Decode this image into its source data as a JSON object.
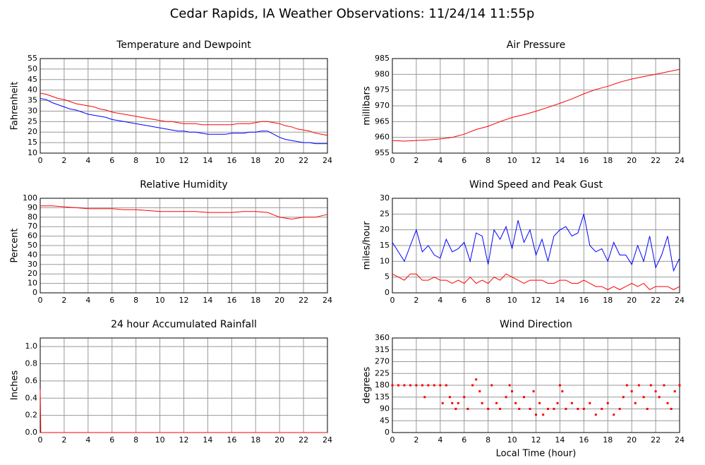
{
  "title": "Cedar Rapids, IA Weather Observations: 11/24/14 11:55p",
  "chart_data": [
    {
      "type": "line",
      "title": "Temperature and Dewpoint",
      "y_label": "Fahrenheit",
      "x": [
        0,
        0.5,
        1,
        1.5,
        2,
        2.5,
        3,
        3.5,
        4,
        4.5,
        5,
        5.5,
        6,
        6.5,
        7,
        7.5,
        8,
        8.5,
        9,
        9.5,
        10,
        10.5,
        11,
        11.5,
        12,
        12.5,
        13,
        13.5,
        14,
        14.5,
        15,
        15.5,
        16,
        16.5,
        17,
        17.5,
        18,
        18.5,
        19,
        19.5,
        20,
        20.5,
        21,
        21.5,
        22,
        22.5,
        23,
        23.5,
        24
      ],
      "series": [
        {
          "color": "#ff0000",
          "values": [
            38.5,
            38,
            37,
            36,
            35.5,
            34.5,
            33.5,
            33,
            32.5,
            32,
            31,
            30.5,
            29.5,
            29,
            28.5,
            28,
            27.5,
            27,
            26.5,
            26,
            25.5,
            25,
            25,
            24.5,
            24,
            24,
            24,
            23.5,
            23.5,
            23.5,
            23.5,
            23.5,
            23.5,
            24,
            24,
            24,
            24.5,
            25,
            25,
            24.5,
            24,
            23,
            22.5,
            21.5,
            21,
            20.5,
            19.5,
            19,
            18.5
          ]
        },
        {
          "color": "#0000ff",
          "values": [
            36,
            35.5,
            34,
            33,
            32,
            31,
            30.5,
            29.5,
            28.5,
            28,
            27.5,
            27,
            26,
            25.5,
            25,
            24.5,
            24,
            23.5,
            23,
            22.5,
            22,
            21.5,
            21,
            20.5,
            20.5,
            20,
            20,
            19.5,
            19,
            19,
            19,
            19,
            19.5,
            19.5,
            19.5,
            20,
            20,
            20.5,
            20.5,
            19,
            17.5,
            16.5,
            16,
            15.5,
            15,
            15,
            14.5,
            14.5,
            14.5
          ]
        }
      ],
      "xlim": [
        0,
        24
      ],
      "xticks": [
        0,
        2,
        4,
        6,
        8,
        10,
        12,
        14,
        16,
        18,
        20,
        22,
        24
      ],
      "ylim": [
        10,
        55
      ],
      "yticks": [
        10,
        15,
        20,
        25,
        30,
        35,
        40,
        45,
        50,
        55
      ],
      "grid": true
    },
    {
      "type": "line",
      "title": "Air Pressure",
      "y_label": "millibars",
      "x": [
        0,
        1,
        2,
        3,
        4,
        5,
        6,
        7,
        8,
        9,
        10,
        11,
        12,
        13,
        14,
        15,
        16,
        17,
        18,
        19,
        20,
        21,
        22,
        23,
        24
      ],
      "series": [
        {
          "color": "#ff0000",
          "values": [
            959,
            958.8,
            959,
            959.2,
            959.5,
            960,
            961,
            962.5,
            963.5,
            965,
            966.3,
            967.2,
            968.3,
            969.5,
            970.8,
            972.2,
            973.8,
            975.2,
            976.2,
            977.5,
            978.5,
            979.3,
            980,
            980.8,
            981.6
          ]
        }
      ],
      "xlim": [
        0,
        24
      ],
      "xticks": [
        0,
        2,
        4,
        6,
        8,
        10,
        12,
        14,
        16,
        18,
        20,
        22,
        24
      ],
      "ylim": [
        955,
        985
      ],
      "yticks": [
        955,
        960,
        965,
        970,
        975,
        980,
        985
      ],
      "grid": true
    },
    {
      "type": "line",
      "title": "Relative Humidity",
      "y_label": "Percent",
      "x": [
        0,
        1,
        2,
        3,
        4,
        5,
        6,
        7,
        8,
        9,
        10,
        11,
        12,
        13,
        14,
        15,
        16,
        17,
        18,
        19,
        20,
        21,
        22,
        23,
        24
      ],
      "series": [
        {
          "color": "#ff0000",
          "values": [
            92,
            92,
            91,
            90,
            89,
            89,
            89,
            88,
            88,
            87,
            86,
            86,
            86,
            86,
            85,
            85,
            85,
            86,
            86,
            85,
            80,
            78,
            80,
            80,
            83
          ]
        }
      ],
      "xlim": [
        0,
        24
      ],
      "xticks": [
        0,
        2,
        4,
        6,
        8,
        10,
        12,
        14,
        16,
        18,
        20,
        22,
        24
      ],
      "ylim": [
        0,
        100
      ],
      "yticks": [
        0,
        10,
        20,
        30,
        40,
        50,
        60,
        70,
        80,
        90,
        100
      ],
      "grid": true
    },
    {
      "type": "line",
      "title": "Wind Speed and Peak Gust",
      "y_label": "miles/hour",
      "x": [
        0,
        0.5,
        1,
        1.5,
        2,
        2.5,
        3,
        3.5,
        4,
        4.5,
        5,
        5.5,
        6,
        6.5,
        7,
        7.5,
        8,
        8.5,
        9,
        9.5,
        10,
        10.5,
        11,
        11.5,
        12,
        12.5,
        13,
        13.5,
        14,
        14.5,
        15,
        15.5,
        16,
        16.5,
        17,
        17.5,
        18,
        18.5,
        19,
        19.5,
        20,
        20.5,
        21,
        21.5,
        22,
        22.5,
        23,
        23.5,
        24
      ],
      "series": [
        {
          "color": "#0000ff",
          "values": [
            16,
            13,
            10,
            15,
            20,
            13,
            15,
            12,
            11,
            17,
            13,
            14,
            16,
            10,
            19,
            18,
            9,
            20,
            17,
            21,
            14,
            23,
            16,
            20,
            12,
            17,
            10,
            18,
            20,
            21,
            18,
            19,
            25,
            15,
            13,
            14,
            10,
            16,
            12,
            12,
            9,
            15,
            10,
            18,
            8,
            12,
            18,
            7,
            11
          ]
        },
        {
          "color": "#ff0000",
          "values": [
            6,
            5,
            4,
            6,
            6,
            4,
            4,
            5,
            4,
            4,
            3,
            4,
            3,
            5,
            3,
            4,
            3,
            5,
            4,
            6,
            5,
            4,
            3,
            4,
            4,
            4,
            3,
            3,
            4,
            4,
            3,
            3,
            4,
            3,
            2,
            2,
            1,
            2,
            1,
            2,
            3,
            2,
            3,
            1,
            2,
            2,
            2,
            1,
            2
          ]
        }
      ],
      "xlim": [
        0,
        24
      ],
      "xticks": [
        0,
        2,
        4,
        6,
        8,
        10,
        12,
        14,
        16,
        18,
        20,
        22,
        24
      ],
      "ylim": [
        0,
        30
      ],
      "yticks": [
        0,
        5,
        10,
        15,
        20,
        25,
        30
      ],
      "grid": true
    },
    {
      "type": "line",
      "title": "24 hour Accumulated Rainfall",
      "y_label": "Inches",
      "x": [
        0,
        0.05,
        0.1,
        24
      ],
      "series": [
        {
          "color": "#ff0000",
          "values": [
            0.5,
            0,
            0,
            0
          ]
        }
      ],
      "xlim": [
        0,
        24
      ],
      "xticks": [
        0,
        2,
        4,
        6,
        8,
        10,
        12,
        14,
        16,
        18,
        20,
        22,
        24
      ],
      "ylim": [
        0,
        1.1
      ],
      "yticks": [
        {
          "value": 0,
          "label": "0.0"
        },
        0.2,
        0.4,
        0.6,
        0.8,
        {
          "value": 1,
          "label": "1.0"
        }
      ],
      "grid": true
    },
    {
      "type": "scatter",
      "title": "Wind Direction",
      "y_label": "degrees",
      "x_label": "Local Time (hour)",
      "x": [
        0,
        0.5,
        1,
        1.5,
        2,
        2.5,
        2.7,
        3,
        3.5,
        4,
        4.2,
        4.5,
        4.8,
        5,
        5.3,
        5.5,
        6,
        6.3,
        6.7,
        7,
        7.3,
        7.5,
        8,
        8.3,
        8.7,
        9,
        9.5,
        9.8,
        10,
        10.3,
        10.6,
        11,
        11.5,
        11.8,
        12,
        12.3,
        12.6,
        13,
        13.5,
        13.8,
        14,
        14.2,
        14.5,
        15,
        15.5,
        16,
        16.5,
        17,
        17.5,
        18,
        18.5,
        19,
        19.3,
        19.6,
        20,
        20.3,
        20.6,
        21,
        21.3,
        21.6,
        22,
        22.3,
        22.7,
        23,
        23.3,
        23.6,
        24
      ],
      "series": [
        {
          "color": "#ff0000",
          "values": [
            180,
            180,
            180,
            180,
            180,
            180,
            135,
            180,
            180,
            180,
            112,
            180,
            135,
            112,
            90,
            112,
            135,
            90,
            180,
            202,
            157,
            112,
            90,
            180,
            112,
            90,
            135,
            180,
            157,
            112,
            90,
            135,
            90,
            157,
            68,
            112,
            68,
            90,
            90,
            112,
            180,
            157,
            90,
            112,
            90,
            90,
            112,
            68,
            90,
            112,
            68,
            90,
            135,
            180,
            157,
            112,
            180,
            135,
            90,
            180,
            157,
            135,
            180,
            112,
            90,
            157,
            180
          ]
        }
      ],
      "xlim": [
        0,
        24
      ],
      "xticks": [
        0,
        2,
        4,
        6,
        8,
        10,
        12,
        14,
        16,
        18,
        20,
        22,
        24
      ],
      "ylim": [
        0,
        360
      ],
      "yticks": [
        0,
        45,
        90,
        135,
        180,
        225,
        270,
        315,
        360
      ],
      "grid": true
    }
  ]
}
